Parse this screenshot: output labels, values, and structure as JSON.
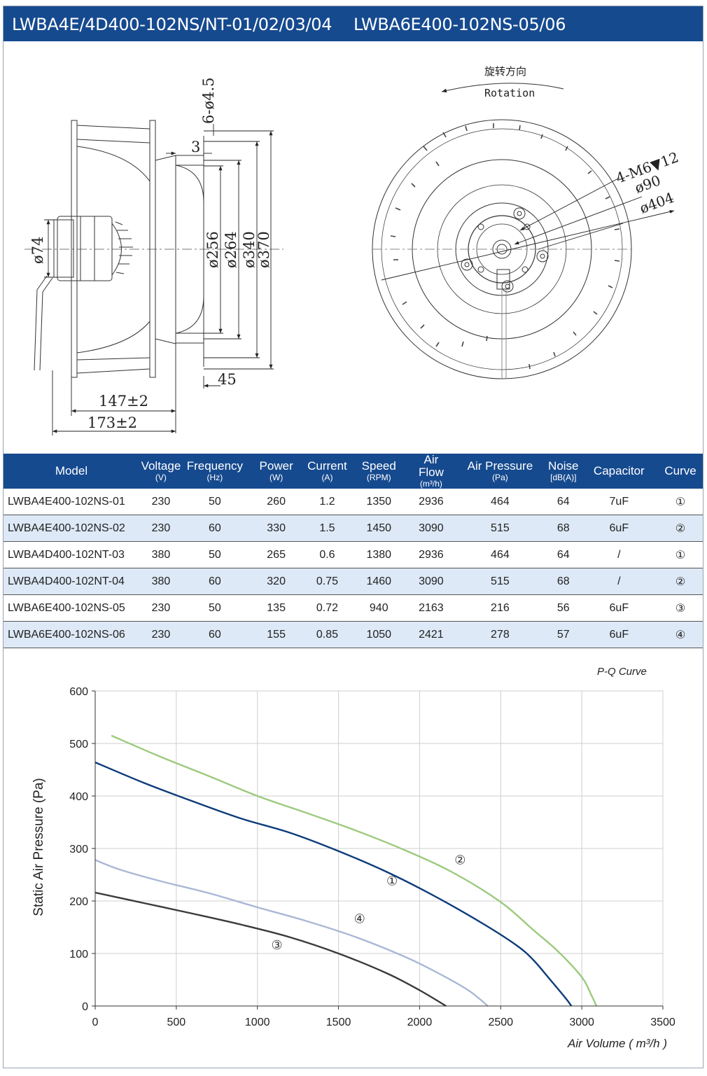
{
  "header": {
    "left_title": "LWBA4E/4D400-102NS/NT-01/02/03/04",
    "right_title": "LWBA6E400-102NS-05/06"
  },
  "drawing": {
    "side_view": {
      "hole_label": "6-ø4.5",
      "dim_3": "3",
      "dim_74": "ø74",
      "dim_256": "ø256",
      "dim_264": "ø264",
      "dim_340": "ø340",
      "dim_370": "ø370",
      "dim_45": "45",
      "dim_147": "147±2",
      "dim_173": "173±2"
    },
    "front_view": {
      "rotation_cn": "旋转方向",
      "rotation_en": "Rotation",
      "thread_label": "4-M6▼12",
      "dim_90": "ø90",
      "dim_404": "ø404"
    }
  },
  "table": {
    "headers": [
      {
        "label": "Model",
        "unit": ""
      },
      {
        "label": "Voltage",
        "unit": "(V)"
      },
      {
        "label": "Frequency",
        "unit": "(Hz)"
      },
      {
        "label": "Power",
        "unit": "(W)"
      },
      {
        "label": "Current",
        "unit": "(A)"
      },
      {
        "label": "Speed",
        "unit": "(RPM)"
      },
      {
        "label": "Air Flow",
        "unit": "(m³/h)"
      },
      {
        "label": "Air Pressure",
        "unit": "(Pa)"
      },
      {
        "label": "Noise",
        "unit": "[dB(A)]"
      },
      {
        "label": "Capacitor",
        "unit": ""
      },
      {
        "label": "Curve",
        "unit": ""
      }
    ],
    "rows": [
      [
        "LWBA4E400-102NS-01",
        "230",
        "50",
        "260",
        "1.2",
        "1350",
        "2936",
        "464",
        "64",
        "7uF",
        "①"
      ],
      [
        "LWBA4E400-102NS-02",
        "230",
        "60",
        "330",
        "1.5",
        "1450",
        "3090",
        "515",
        "68",
        "6uF",
        "②"
      ],
      [
        "LWBA4D400-102NT-03",
        "380",
        "50",
        "265",
        "0.6",
        "1380",
        "2936",
        "464",
        "64",
        "/",
        "①"
      ],
      [
        "LWBA4D400-102NT-04",
        "380",
        "60",
        "320",
        "0.75",
        "1460",
        "3090",
        "515",
        "68",
        "/",
        "②"
      ],
      [
        "LWBA6E400-102NS-05",
        "230",
        "50",
        "135",
        "0.72",
        "940",
        "2163",
        "216",
        "56",
        "6uF",
        "③"
      ],
      [
        "LWBA6E400-102NS-06",
        "230",
        "60",
        "155",
        "0.85",
        "1050",
        "2421",
        "278",
        "57",
        "6uF",
        "④"
      ]
    ]
  },
  "chart_data": {
    "type": "line",
    "title": "P-Q Curve",
    "xlabel": "Air Volume ( m³/h )",
    "ylabel": "Static Air Pressure  (Pa)",
    "xlim": [
      0,
      3500
    ],
    "ylim": [
      0,
      600
    ],
    "xticks": [
      "0",
      "500",
      "1000",
      "1500",
      "2000",
      "2500",
      "3000",
      "3500"
    ],
    "yticks": [
      "0",
      "100",
      "200",
      "300",
      "400",
      "500",
      "600"
    ],
    "grid": true,
    "series": [
      {
        "name": "①",
        "color": "#0d3b7a",
        "label_at": [
          1830,
          230
        ],
        "points": [
          [
            0,
            464
          ],
          [
            300,
            425
          ],
          [
            600,
            390
          ],
          [
            900,
            357
          ],
          [
            1200,
            330
          ],
          [
            1500,
            295
          ],
          [
            1800,
            255
          ],
          [
            2100,
            208
          ],
          [
            2400,
            155
          ],
          [
            2600,
            115
          ],
          [
            2700,
            88
          ],
          [
            2800,
            52
          ],
          [
            2900,
            15
          ],
          [
            2936,
            0
          ]
        ]
      },
      {
        "name": "②",
        "color": "#9cca7e",
        "label_at": [
          2250,
          270
        ],
        "points": [
          [
            100,
            515
          ],
          [
            400,
            475
          ],
          [
            700,
            438
          ],
          [
            1000,
            400
          ],
          [
            1300,
            368
          ],
          [
            1600,
            335
          ],
          [
            1900,
            298
          ],
          [
            2200,
            255
          ],
          [
            2500,
            198
          ],
          [
            2700,
            145
          ],
          [
            2850,
            105
          ],
          [
            3000,
            55
          ],
          [
            3060,
            20
          ],
          [
            3090,
            0
          ]
        ]
      },
      {
        "name": "③",
        "color": "#3a3a3a",
        "label_at": [
          1120,
          108
        ],
        "points": [
          [
            0,
            216
          ],
          [
            300,
            196
          ],
          [
            600,
            176
          ],
          [
            900,
            155
          ],
          [
            1200,
            131
          ],
          [
            1500,
            100
          ],
          [
            1800,
            62
          ],
          [
            2000,
            30
          ],
          [
            2163,
            0
          ]
        ]
      },
      {
        "name": "④",
        "color": "#aab8d6",
        "label_at": [
          1630,
          158
        ],
        "points": [
          [
            0,
            278
          ],
          [
            150,
            260
          ],
          [
            400,
            238
          ],
          [
            700,
            215
          ],
          [
            1000,
            188
          ],
          [
            1300,
            162
          ],
          [
            1600,
            132
          ],
          [
            1900,
            95
          ],
          [
            2100,
            65
          ],
          [
            2300,
            30
          ],
          [
            2421,
            0
          ]
        ]
      }
    ]
  }
}
